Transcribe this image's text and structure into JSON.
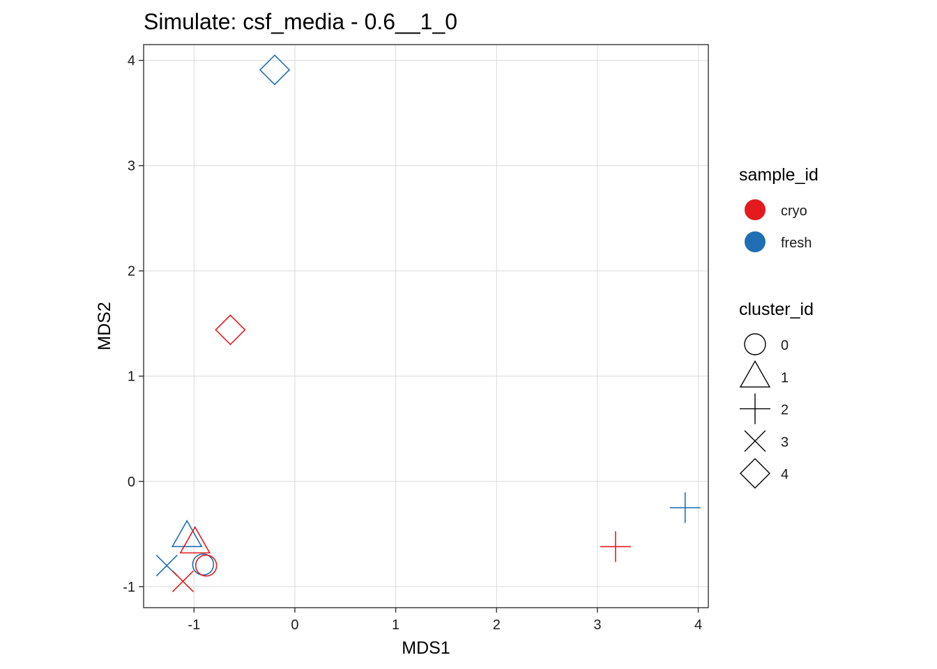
{
  "chart_data": {
    "type": "scatter",
    "title": "Simulate: csf_media - 0.6__1_0",
    "xlabel": "MDS1",
    "ylabel": "MDS2",
    "xlim": [
      -1.5,
      4.1
    ],
    "ylim": [
      -1.2,
      4.15
    ],
    "x_ticks": [
      -1,
      0,
      1,
      2,
      3,
      4
    ],
    "y_ticks": [
      -1,
      0,
      1,
      2,
      3,
      4
    ],
    "grid": true,
    "legend_position": "right",
    "color_legend": {
      "title": "sample_id",
      "entries": [
        {
          "label": "cryo",
          "color": "#E41A1C"
        },
        {
          "label": "fresh",
          "color": "#1F6FB4"
        }
      ]
    },
    "shape_legend": {
      "title": "cluster_id",
      "entries": [
        {
          "label": "0",
          "shape": "circle"
        },
        {
          "label": "1",
          "shape": "triangle"
        },
        {
          "label": "2",
          "shape": "plus"
        },
        {
          "label": "3",
          "shape": "cross"
        },
        {
          "label": "4",
          "shape": "diamond"
        }
      ]
    },
    "points": [
      {
        "x": -0.2,
        "y": 3.91,
        "sample_id": "fresh",
        "cluster_id": "4"
      },
      {
        "x": -0.64,
        "y": 1.44,
        "sample_id": "cryo",
        "cluster_id": "4"
      },
      {
        "x": 3.87,
        "y": -0.25,
        "sample_id": "fresh",
        "cluster_id": "2"
      },
      {
        "x": 3.18,
        "y": -0.62,
        "sample_id": "cryo",
        "cluster_id": "2"
      },
      {
        "x": -1.07,
        "y": -0.52,
        "sample_id": "fresh",
        "cluster_id": "1"
      },
      {
        "x": -0.99,
        "y": -0.58,
        "sample_id": "cryo",
        "cluster_id": "1"
      },
      {
        "x": -0.91,
        "y": -0.79,
        "sample_id": "fresh",
        "cluster_id": "0"
      },
      {
        "x": -0.88,
        "y": -0.8,
        "sample_id": "cryo",
        "cluster_id": "0"
      },
      {
        "x": -1.27,
        "y": -0.8,
        "sample_id": "fresh",
        "cluster_id": "3"
      },
      {
        "x": -1.11,
        "y": -0.95,
        "sample_id": "cryo",
        "cluster_id": "3"
      }
    ]
  }
}
